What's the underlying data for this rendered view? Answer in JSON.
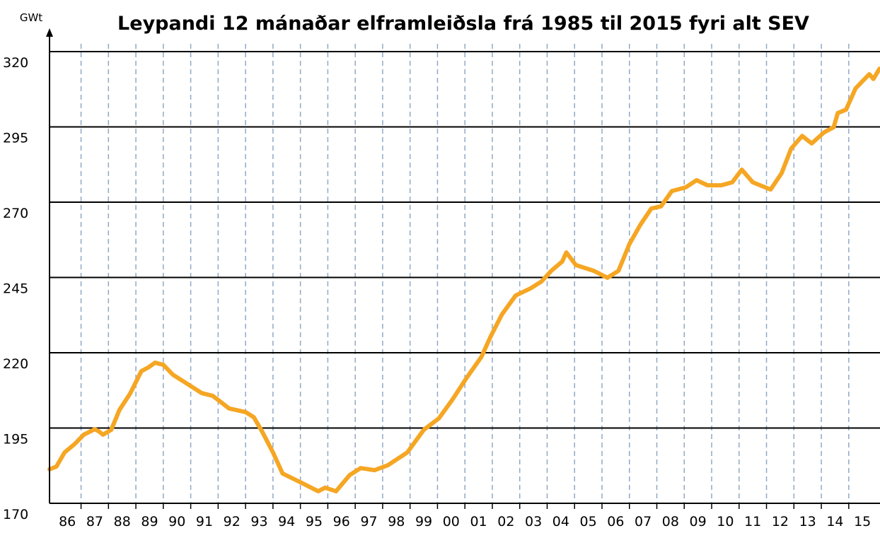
{
  "chart_data": {
    "type": "line",
    "title": "Leypandi 12 mánaðar elframleiðsla frá 1985 til 2015 fyri alt SEV",
    "y_label": "GWt",
    "x": [
      1985.85,
      1986.1,
      1986.4,
      1986.77,
      1987.1,
      1987.5,
      1987.65,
      1987.8,
      1988.1,
      1988.4,
      1988.8,
      1989.2,
      1989.45,
      1989.7,
      1990.0,
      1990.35,
      1990.75,
      1991.4,
      1991.8,
      1992.4,
      1993.0,
      1993.3,
      1993.6,
      1994.0,
      1994.35,
      1995.0,
      1995.65,
      1995.9,
      1996.3,
      1996.8,
      1997.2,
      1997.7,
      1998.2,
      1998.9,
      1999.5,
      2000.05,
      2000.55,
      2001.05,
      2001.6,
      2001.95,
      2002.35,
      2002.85,
      2003.4,
      2003.8,
      2004.15,
      2004.55,
      2004.7,
      2005.05,
      2005.7,
      2006.2,
      2006.6,
      2007.0,
      2007.4,
      2007.8,
      2008.15,
      2008.55,
      2009.05,
      2009.45,
      2009.85,
      2010.35,
      2010.75,
      2011.1,
      2011.5,
      2012.15,
      2012.55,
      2012.9,
      2013.3,
      2013.65,
      2014.1,
      2014.45,
      2014.6,
      2014.9,
      2015.25,
      2015.75,
      2015.9,
      2016.12
    ],
    "series": [
      {
        "color": "#f5a623",
        "values": [
          181.3,
          182.2,
          186.9,
          189.7,
          192.8,
          194.6,
          193.9,
          192.8,
          194.4,
          201,
          206.6,
          213.9,
          215.1,
          216.7,
          216,
          212.7,
          210.4,
          206.6,
          205.7,
          201.5,
          200.3,
          198.6,
          193.9,
          186.9,
          179.9,
          177,
          174,
          175.2,
          174,
          179.4,
          181.7,
          181,
          182.7,
          186.9,
          194.4,
          198.2,
          204.5,
          211.5,
          218.6,
          225.6,
          232.7,
          239,
          241.4,
          243.7,
          247.2,
          250.3,
          253.3,
          249.1,
          247.2,
          244.9,
          247.2,
          256.1,
          262.5,
          267.9,
          268.6,
          273.7,
          274.9,
          277.3,
          275.6,
          275.6,
          276.6,
          280.8,
          276.6,
          274.2,
          279.6,
          287.8,
          292,
          289.5,
          293.2,
          294.9,
          299.6,
          300.7,
          307.8,
          312.5,
          310.9,
          314.3
        ]
      }
    ],
    "xlim": [
      1985.85,
      2016.14
    ],
    "ylim": [
      170,
      320
    ],
    "yticks": [
      170,
      195,
      220,
      245,
      270,
      295,
      320
    ],
    "xticks": [
      {
        "value": 1986.5,
        "label": "86"
      },
      {
        "value": 1987.5,
        "label": "87"
      },
      {
        "value": 1988.5,
        "label": "88"
      },
      {
        "value": 1989.5,
        "label": "89"
      },
      {
        "value": 1990.5,
        "label": "90"
      },
      {
        "value": 1991.5,
        "label": "91"
      },
      {
        "value": 1992.5,
        "label": "92"
      },
      {
        "value": 1993.5,
        "label": "93"
      },
      {
        "value": 1994.5,
        "label": "94"
      },
      {
        "value": 1995.5,
        "label": "95"
      },
      {
        "value": 1996.5,
        "label": "96"
      },
      {
        "value": 1997.5,
        "label": "97"
      },
      {
        "value": 1998.5,
        "label": "98"
      },
      {
        "value": 1999.5,
        "label": "99"
      },
      {
        "value": 2000.5,
        "label": "00"
      },
      {
        "value": 2001.5,
        "label": "01"
      },
      {
        "value": 2002.5,
        "label": "02"
      },
      {
        "value": 2003.5,
        "label": "03"
      },
      {
        "value": 2004.5,
        "label": "04"
      },
      {
        "value": 2005.5,
        "label": "05"
      },
      {
        "value": 2006.5,
        "label": "06"
      },
      {
        "value": 2007.5,
        "label": "07"
      },
      {
        "value": 2008.5,
        "label": "08"
      },
      {
        "value": 2009.5,
        "label": "09"
      },
      {
        "value": 2010.5,
        "label": "10"
      },
      {
        "value": 2011.5,
        "label": "11"
      },
      {
        "value": 2012.5,
        "label": "12"
      },
      {
        "value": 2013.5,
        "label": "13"
      },
      {
        "value": 2014.5,
        "label": "14"
      },
      {
        "value": 2015.5,
        "label": "15"
      }
    ],
    "xgrid": [
      1987,
      1988,
      1989,
      1990,
      1991,
      1992,
      1993,
      1994,
      1995,
      1996,
      1997,
      1998,
      1999,
      2000,
      2001,
      2002,
      2003,
      2004,
      2005,
      2006,
      2007,
      2008,
      2009,
      2010,
      2011,
      2012,
      2013,
      2014,
      2015
    ],
    "grid": true
  }
}
